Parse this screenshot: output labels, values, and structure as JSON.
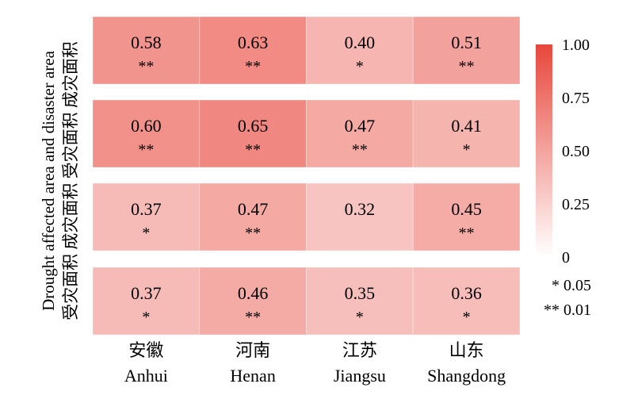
{
  "chart_data": {
    "type": "heatmap",
    "y_axis_label": {
      "line1": "Drought affected area and disaster area",
      "row_labels": [
        "成灾面积",
        "受灾面积",
        "成灾面积",
        "受灾面积"
      ]
    },
    "categories": [
      {
        "zh": "安徽",
        "en": "Anhui"
      },
      {
        "zh": "河南",
        "en": "Henan"
      },
      {
        "zh": "江苏",
        "en": "Jiangsu"
      },
      {
        "zh": "山东",
        "en": "Shangdong"
      }
    ],
    "rows": [
      {
        "values": [
          0.58,
          0.63,
          0.4,
          0.51
        ],
        "sig": [
          "**",
          "**",
          "*",
          "**"
        ]
      },
      {
        "values": [
          0.6,
          0.65,
          0.47,
          0.41
        ],
        "sig": [
          "**",
          "**",
          "**",
          "*"
        ]
      },
      {
        "values": [
          0.37,
          0.47,
          0.32,
          0.45
        ],
        "sig": [
          "*",
          "**",
          "",
          "**"
        ]
      },
      {
        "values": [
          0.37,
          0.46,
          0.35,
          0.36
        ],
        "sig": [
          "*",
          "**",
          "*",
          "*"
        ]
      }
    ],
    "colorbar": {
      "range": [
        0,
        1
      ],
      "ticks": [
        "1.00",
        "0.75",
        "0.50",
        "0.25",
        "0"
      ],
      "low_color": "#ffffff",
      "high_color": "#e8473c"
    },
    "significance_legend": [
      {
        "symbol": "*",
        "value": "0.05"
      },
      {
        "symbol": "**",
        "value": "0.01"
      }
    ]
  }
}
